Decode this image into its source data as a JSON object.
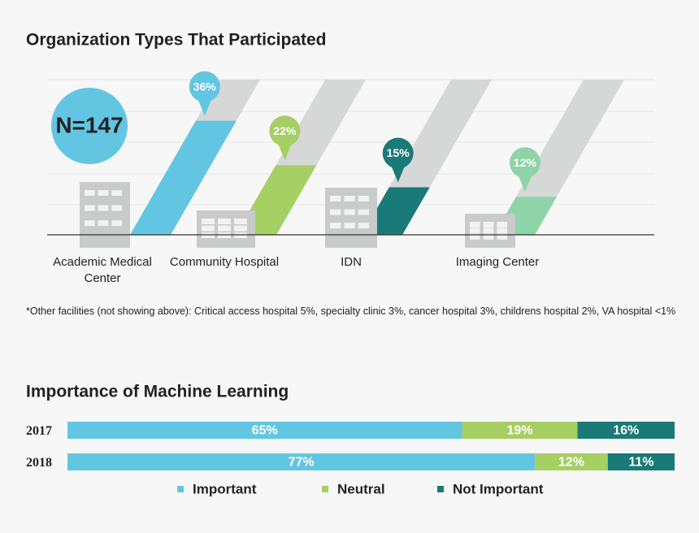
{
  "chart_data": [
    {
      "type": "bar",
      "title": "Organization Types That Participated",
      "annotation": "N=147",
      "categories": [
        "Academic Medical Center",
        "Community Hospital",
        "IDN",
        "Imaging Center"
      ],
      "values": [
        36,
        22,
        15,
        12
      ],
      "value_labels": [
        "36%",
        "22%",
        "15%",
        "12%"
      ],
      "colors": [
        "#62c6e2",
        "#a6cf64",
        "#1a7a77",
        "#8fd4a8"
      ],
      "ylim": [
        0,
        49
      ],
      "footnote": "*Other facilities (not showing above): Critical access hospital 5%, specialty clinic 3%, cancer hospital 3%, childrens hospital 2%, VA hospital <1%"
    },
    {
      "type": "stacked",
      "title": "Importance of Machine Learning",
      "categories": [
        "2017",
        "2018"
      ],
      "xlim": [
        0,
        100
      ],
      "series": [
        {
          "name": "Important",
          "color": "#62c6e2",
          "values": [
            65,
            77
          ],
          "value_labels": [
            "65%",
            "77%"
          ]
        },
        {
          "name": "Neutral",
          "color": "#a6cf64",
          "values": [
            19,
            12
          ],
          "value_labels": [
            "19%",
            "12%"
          ]
        },
        {
          "name": "Not Important",
          "color": "#1a7a77",
          "values": [
            16,
            11
          ],
          "value_labels": [
            "16%",
            "11%"
          ]
        }
      ]
    }
  ]
}
